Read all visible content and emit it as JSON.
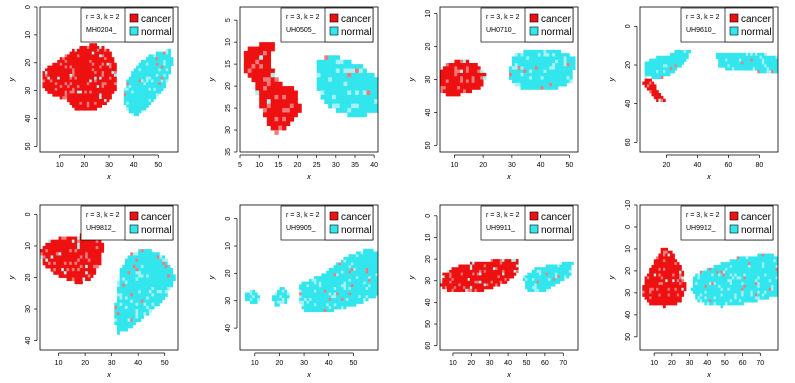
{
  "colors": {
    "cancer": "#ee1111",
    "cancer_light": "#f07a7a",
    "normal": "#33e6ee",
    "normal_light": "#a6f1f4",
    "background": "#ffffff",
    "axis": "#000000"
  },
  "chart_data": [
    {
      "type": "heatmap",
      "xlabel": "x",
      "ylabel": "y",
      "xlim": [
        2,
        58
      ],
      "ylim": [
        52,
        0
      ],
      "y_reversed": true,
      "xticks": [
        10,
        20,
        30,
        40,
        50
      ],
      "yticks": [
        0,
        10,
        20,
        30,
        40,
        50
      ],
      "legend": {
        "placement": "top-right",
        "line1": "r = 3, k = 2",
        "line2": "MH0204_",
        "entries": [
          "cancer",
          "normal"
        ]
      },
      "regions": [
        {
          "class": "cancer",
          "outline": [
            [
              3,
              22
            ],
            [
              8,
              19
            ],
            [
              16,
              14
            ],
            [
              24,
              12
            ],
            [
              30,
              14
            ],
            [
              33,
              20
            ],
            [
              33,
              28
            ],
            [
              30,
              33
            ],
            [
              24,
              36
            ],
            [
              17,
              36
            ],
            [
              12,
              32
            ],
            [
              6,
              30
            ],
            [
              3,
              27
            ]
          ]
        },
        {
          "class": "normal",
          "outline": [
            [
              37,
              26
            ],
            [
              41,
              20
            ],
            [
              47,
              16
            ],
            [
              55,
              14
            ],
            [
              56,
              19
            ],
            [
              53,
              27
            ],
            [
              47,
              34
            ],
            [
              41,
              38
            ],
            [
              37,
              36
            ],
            [
              36,
              31
            ]
          ]
        }
      ]
    },
    {
      "type": "heatmap",
      "xlabel": "x",
      "ylabel": "y",
      "xlim": [
        5,
        41
      ],
      "ylim": [
        35,
        2
      ],
      "y_reversed": true,
      "xticks": [
        5,
        10,
        15,
        20,
        25,
        30,
        35,
        40
      ],
      "yticks": [
        5,
        10,
        15,
        20,
        25,
        30,
        35
      ],
      "legend": {
        "placement": "top-right",
        "line1": "r = 3, k = 2",
        "line2": "UH0505_",
        "entries": [
          "cancer",
          "normal"
        ]
      },
      "regions": [
        {
          "class": "cancer",
          "outline": [
            [
              6,
              11
            ],
            [
              11,
              9
            ],
            [
              14,
              9
            ],
            [
              13,
              14
            ],
            [
              15,
              18
            ],
            [
              20,
              20
            ],
            [
              21,
              25
            ],
            [
              18,
              28
            ],
            [
              14,
              30
            ],
            [
              11,
              25
            ],
            [
              9,
              19
            ],
            [
              6,
              15
            ]
          ]
        },
        {
          "class": "normal",
          "outline": [
            [
              25,
              13
            ],
            [
              29,
              12
            ],
            [
              36,
              14
            ],
            [
              41,
              17
            ],
            [
              41,
              25
            ],
            [
              35,
              26
            ],
            [
              28,
              24
            ],
            [
              25,
              19
            ]
          ]
        }
      ]
    },
    {
      "type": "heatmap",
      "xlabel": "x",
      "ylabel": "y",
      "xlim": [
        5,
        53
      ],
      "ylim": [
        52,
        8
      ],
      "y_reversed": true,
      "xticks": [
        10,
        20,
        30,
        40,
        50
      ],
      "yticks": [
        10,
        20,
        30,
        40,
        50
      ],
      "legend": {
        "placement": "top-right",
        "line1": "r = 3, k = 2",
        "line2": "UH0710_",
        "entries": [
          "cancer",
          "normal"
        ]
      },
      "regions": [
        {
          "class": "cancer",
          "outline": [
            [
              5,
              27
            ],
            [
              8,
              24
            ],
            [
              13,
              23
            ],
            [
              18,
              24
            ],
            [
              21,
              27
            ],
            [
              20,
              31
            ],
            [
              15,
              33
            ],
            [
              9,
              34
            ],
            [
              5,
              33
            ]
          ]
        },
        {
          "class": "normal",
          "outline": [
            [
              30,
              22
            ],
            [
              36,
              20
            ],
            [
              46,
              20
            ],
            [
              52,
              22
            ],
            [
              51,
              30
            ],
            [
              44,
              32
            ],
            [
              34,
              32
            ],
            [
              29,
              29
            ]
          ]
        }
      ]
    },
    {
      "type": "heatmap",
      "xlabel": "x",
      "ylabel": "y",
      "xlim": [
        3,
        92
      ],
      "ylim": [
        65,
        -10
      ],
      "y_reversed": true,
      "xticks": [
        20,
        40,
        60,
        80
      ],
      "yticks": [
        0,
        20,
        40,
        60
      ],
      "legend": {
        "placement": "top-right",
        "line1": "r = 3, k = 2",
        "line2": "UH9610_",
        "entries": [
          "cancer",
          "normal"
        ]
      },
      "regions": [
        {
          "class": "normal",
          "outline": [
            [
              6,
              17
            ],
            [
              15,
              14
            ],
            [
              22,
              13
            ],
            [
              30,
              10
            ],
            [
              36,
              11
            ],
            [
              32,
              17
            ],
            [
              25,
              22
            ],
            [
              16,
              26
            ],
            [
              6,
              24
            ]
          ]
        },
        {
          "class": "cancer",
          "outline": [
            [
              6,
              24
            ],
            [
              10,
              26
            ],
            [
              16,
              33
            ],
            [
              20,
              37
            ],
            [
              15,
              38
            ],
            [
              9,
              33
            ],
            [
              5,
              28
            ]
          ]
        },
        {
          "class": "normal",
          "outline": [
            [
              52,
              13
            ],
            [
              62,
              12
            ],
            [
              75,
              12
            ],
            [
              85,
              13
            ],
            [
              92,
              14
            ],
            [
              92,
              22
            ],
            [
              80,
              22
            ],
            [
              62,
              21
            ],
            [
              54,
              20
            ]
          ]
        }
      ]
    },
    {
      "type": "heatmap",
      "xlabel": "x",
      "ylabel": "y",
      "xlim": [
        3,
        55
      ],
      "ylim": [
        43,
        -3
      ],
      "y_reversed": true,
      "xticks": [
        10,
        20,
        30,
        40,
        50
      ],
      "yticks": [
        0,
        10,
        20,
        30,
        40
      ],
      "legend": {
        "placement": "top-right",
        "line1": "r = 3, k = 2",
        "line2": "UH9812_",
        "entries": [
          "cancer",
          "normal"
        ]
      },
      "regions": [
        {
          "class": "cancer",
          "outline": [
            [
              3,
              11
            ],
            [
              7,
              7
            ],
            [
              14,
              6
            ],
            [
              22,
              5
            ],
            [
              27,
              8
            ],
            [
              26,
              14
            ],
            [
              23,
              19
            ],
            [
              18,
              21
            ],
            [
              11,
              19
            ],
            [
              4,
              15
            ]
          ]
        },
        {
          "class": "normal",
          "outline": [
            [
              33,
              17
            ],
            [
              37,
              11
            ],
            [
              44,
              10
            ],
            [
              50,
              12
            ],
            [
              54,
              19
            ],
            [
              50,
              26
            ],
            [
              43,
              31
            ],
            [
              37,
              35
            ],
            [
              32,
              37
            ],
            [
              31,
              30
            ]
          ]
        }
      ]
    },
    {
      "type": "heatmap",
      "xlabel": "x",
      "ylabel": "y",
      "xlim": [
        4,
        60
      ],
      "ylim": [
        48,
        -5
      ],
      "y_reversed": true,
      "xticks": [
        10,
        20,
        30,
        40,
        50
      ],
      "yticks": [
        0,
        10,
        20,
        30,
        40
      ],
      "legend": {
        "placement": "top-right",
        "line1": "r = 3, k = 2",
        "line2": "UH9905_",
        "entries": [
          "cancer",
          "normal"
        ]
      },
      "regions": [
        {
          "class": "normal",
          "outline": [
            [
              6,
              26
            ],
            [
              10,
              25
            ],
            [
              13,
              28
            ],
            [
              10,
              30
            ],
            [
              6,
              29
            ]
          ]
        },
        {
          "class": "normal",
          "outline": [
            [
              17,
              27
            ],
            [
              21,
              24
            ],
            [
              24,
              26
            ],
            [
              23,
              30
            ],
            [
              18,
              31
            ]
          ]
        },
        {
          "class": "normal",
          "outline": [
            [
              28,
              23
            ],
            [
              38,
              19
            ],
            [
              47,
              13
            ],
            [
              56,
              10
            ],
            [
              60,
              11
            ],
            [
              60,
              27
            ],
            [
              50,
              31
            ],
            [
              40,
              33
            ],
            [
              30,
              33
            ],
            [
              28,
              29
            ]
          ]
        }
      ]
    },
    {
      "type": "heatmap",
      "xlabel": "x",
      "ylabel": "y",
      "xlim": [
        3,
        78
      ],
      "ylim": [
        62,
        -5
      ],
      "y_reversed": true,
      "xticks": [
        10,
        20,
        30,
        40,
        50,
        60,
        70
      ],
      "yticks": [
        0,
        10,
        20,
        30,
        40,
        50,
        60
      ],
      "legend": {
        "placement": "top-right",
        "line1": "r = 3, k = 2",
        "line2": "UH9911_",
        "entries": [
          "cancer",
          "normal"
        ]
      },
      "regions": [
        {
          "class": "cancer",
          "outline": [
            [
              5,
              25
            ],
            [
              12,
              22
            ],
            [
              22,
              20
            ],
            [
              35,
              19
            ],
            [
              45,
              19
            ],
            [
              46,
              24
            ],
            [
              40,
              29
            ],
            [
              28,
              33
            ],
            [
              15,
              34
            ],
            [
              6,
              33
            ],
            [
              3,
              30
            ]
          ]
        },
        {
          "class": "normal",
          "outline": [
            [
              48,
              27
            ],
            [
              55,
              23
            ],
            [
              65,
              21
            ],
            [
              75,
              20
            ],
            [
              74,
              26
            ],
            [
              67,
              30
            ],
            [
              58,
              34
            ],
            [
              50,
              33
            ]
          ]
        }
      ]
    },
    {
      "type": "heatmap",
      "xlabel": "x",
      "ylabel": "y",
      "xlim": [
        2,
        80
      ],
      "ylim": [
        56,
        -10
      ],
      "y_reversed": true,
      "xticks": [
        10,
        20,
        30,
        40,
        50,
        60,
        70
      ],
      "yticks": [
        -10,
        0,
        10,
        20,
        30,
        40,
        50
      ],
      "legend": {
        "placement": "top-right",
        "line1": "r = 3, k = 2",
        "line2": "UH9912_",
        "entries": [
          "cancer",
          "normal"
        ]
      },
      "regions": [
        {
          "class": "cancer",
          "outline": [
            [
              5,
              22
            ],
            [
              10,
              14
            ],
            [
              15,
              8
            ],
            [
              20,
              10
            ],
            [
              26,
              18
            ],
            [
              28,
              27
            ],
            [
              25,
              33
            ],
            [
              16,
              35
            ],
            [
              7,
              34
            ],
            [
              3,
              29
            ]
          ]
        },
        {
          "class": "normal",
          "outline": [
            [
              33,
              20
            ],
            [
              45,
              16
            ],
            [
              60,
              12
            ],
            [
              75,
              11
            ],
            [
              80,
              12
            ],
            [
              80,
              30
            ],
            [
              65,
              33
            ],
            [
              48,
              35
            ],
            [
              35,
              33
            ],
            [
              31,
              27
            ]
          ]
        }
      ]
    }
  ]
}
